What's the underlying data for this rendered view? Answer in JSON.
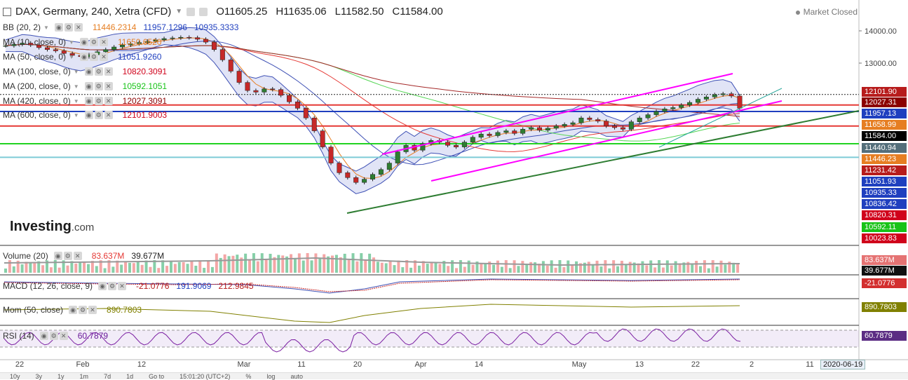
{
  "header": {
    "title": "DAX, Germany, 240, Xetra (CFD)",
    "open_label": "O",
    "open": "11605.25",
    "high_label": "H",
    "high": "11635.06",
    "low_label": "L",
    "low": "11582.50",
    "close_label": "C",
    "close": "11584.00",
    "market_status": "Market Closed"
  },
  "indicators": [
    {
      "label": "BB (20, 2)",
      "values": [
        "11446.2314",
        "11957.1296",
        "10935.3333"
      ],
      "colors": [
        "#e67e22",
        "#1f3fbf",
        "#1f3fbf"
      ]
    },
    {
      "label": "MA (10, close, 0)",
      "values": [
        "11650.6520"
      ],
      "colors": [
        "#e67e22"
      ]
    },
    {
      "label": "MA (50, close, 0)",
      "values": [
        "11051.9260"
      ],
      "colors": [
        "#1f3fbf"
      ]
    },
    {
      "label": "MA (100, close, 0)",
      "values": [
        "10820.3091"
      ],
      "colors": [
        "#d0021b"
      ]
    },
    {
      "label": "MA (200, close, 0)",
      "values": [
        "10592.1051"
      ],
      "colors": [
        "#17c317"
      ]
    },
    {
      "label": "MA (420, close, 0)",
      "values": [
        "12027.3091"
      ],
      "colors": [
        "#8b0000"
      ]
    },
    {
      "label": "MA (600, close, 0)",
      "values": [
        "12101.9003"
      ],
      "colors": [
        "#d0021b"
      ]
    }
  ],
  "sub_panels": {
    "volume": {
      "label": "Volume (20)",
      "v1": "83.637M",
      "v2": "39.677M",
      "badge1": "83.637M",
      "badge2": "39.677M"
    },
    "macd": {
      "label": "MACD (12, 26, close, 9)",
      "v1": "-21.0776",
      "v2": "191.9069",
      "v3": "212.9845",
      "badge": "-21.0776"
    },
    "mom": {
      "label": "Mom (50, close)",
      "v1": "890.7803",
      "badge": "890.7803"
    },
    "rsi": {
      "label": "RSI (14)",
      "v1": "60.7879",
      "badge": "60.7879"
    }
  },
  "logo": {
    "brand": "Investing",
    "suffix": ".com"
  },
  "date_flag": "2020-06-19",
  "bottom_bar": [
    "10y",
    "3y",
    "1y",
    "1m",
    "7d",
    "1d",
    "Go to",
    "15:01:20 (UTC+2)",
    "%",
    "log",
    "auto"
  ],
  "price_axis": {
    "ticks": [
      "14000.00",
      "13000.00"
    ],
    "badges": [
      {
        "text": "12101.90",
        "color": "#b71c1c"
      },
      {
        "text": "12027.31",
        "color": "#8b0000"
      },
      {
        "text": "11957.13",
        "color": "#1f3fbf"
      },
      {
        "text": "11658.99",
        "color": "#e67e22"
      },
      {
        "text": "11584.00",
        "color": "#000000"
      },
      {
        "text": "11440.94",
        "color": "#546e7a"
      },
      {
        "text": "11446.23",
        "color": "#e67e22"
      },
      {
        "text": "11231.42",
        "color": "#b71c1c"
      },
      {
        "text": "11051.93",
        "color": "#1f3fbf"
      },
      {
        "text": "10935.33",
        "color": "#1f3fbf"
      },
      {
        "text": "10836.42",
        "color": "#1f3fbf"
      },
      {
        "text": "10820.31",
        "color": "#d0021b"
      },
      {
        "text": "10592.11",
        "color": "#17c317"
      },
      {
        "text": "10023.83",
        "color": "#d0021b"
      }
    ]
  },
  "chart_data": {
    "type": "candlestick",
    "x_labels": [
      "22",
      "Feb",
      "12",
      "Mar",
      "11",
      "20",
      "Apr",
      "14",
      "May",
      "13",
      "22",
      "2",
      "11"
    ],
    "ylim": [
      9000,
      14400
    ],
    "close_series": [
      13540,
      13580,
      13620,
      13560,
      13480,
      13420,
      13380,
      13300,
      13240,
      13200,
      13260,
      13350,
      13420,
      13500,
      13560,
      13600,
      13640,
      13680,
      13720,
      13760,
      13780,
      13800,
      13790,
      13740,
      13650,
      13420,
      13100,
      12750,
      12400,
      12150,
      12100,
      12200,
      12180,
      12000,
      11800,
      11600,
      11300,
      10900,
      10400,
      9900,
      9600,
      9450,
      9300,
      9400,
      9550,
      9700,
      9900,
      10250,
      10450,
      10300,
      10500,
      10600,
      10550,
      10450,
      10400,
      10550,
      10700,
      10800,
      10750,
      10850,
      10900,
      10820,
      10950,
      11000,
      10920,
      10980,
      11050,
      11100,
      11150,
      11300,
      11250,
      11200,
      11050,
      11000,
      10950,
      11180,
      11300,
      11400,
      11500,
      11580,
      11620,
      11700,
      11780,
      11880,
      11950,
      12020,
      12050,
      11980,
      11600
    ],
    "horizontal_levels": [
      {
        "value": 11700,
        "color": "#e53935"
      },
      {
        "value": 11500,
        "color": "#1f3fbf"
      },
      {
        "value": 11050,
        "color": "#e53935"
      },
      {
        "value": 10500,
        "color": "#22d322"
      },
      {
        "value": 10080,
        "color": "#7ecbd6"
      }
    ]
  }
}
